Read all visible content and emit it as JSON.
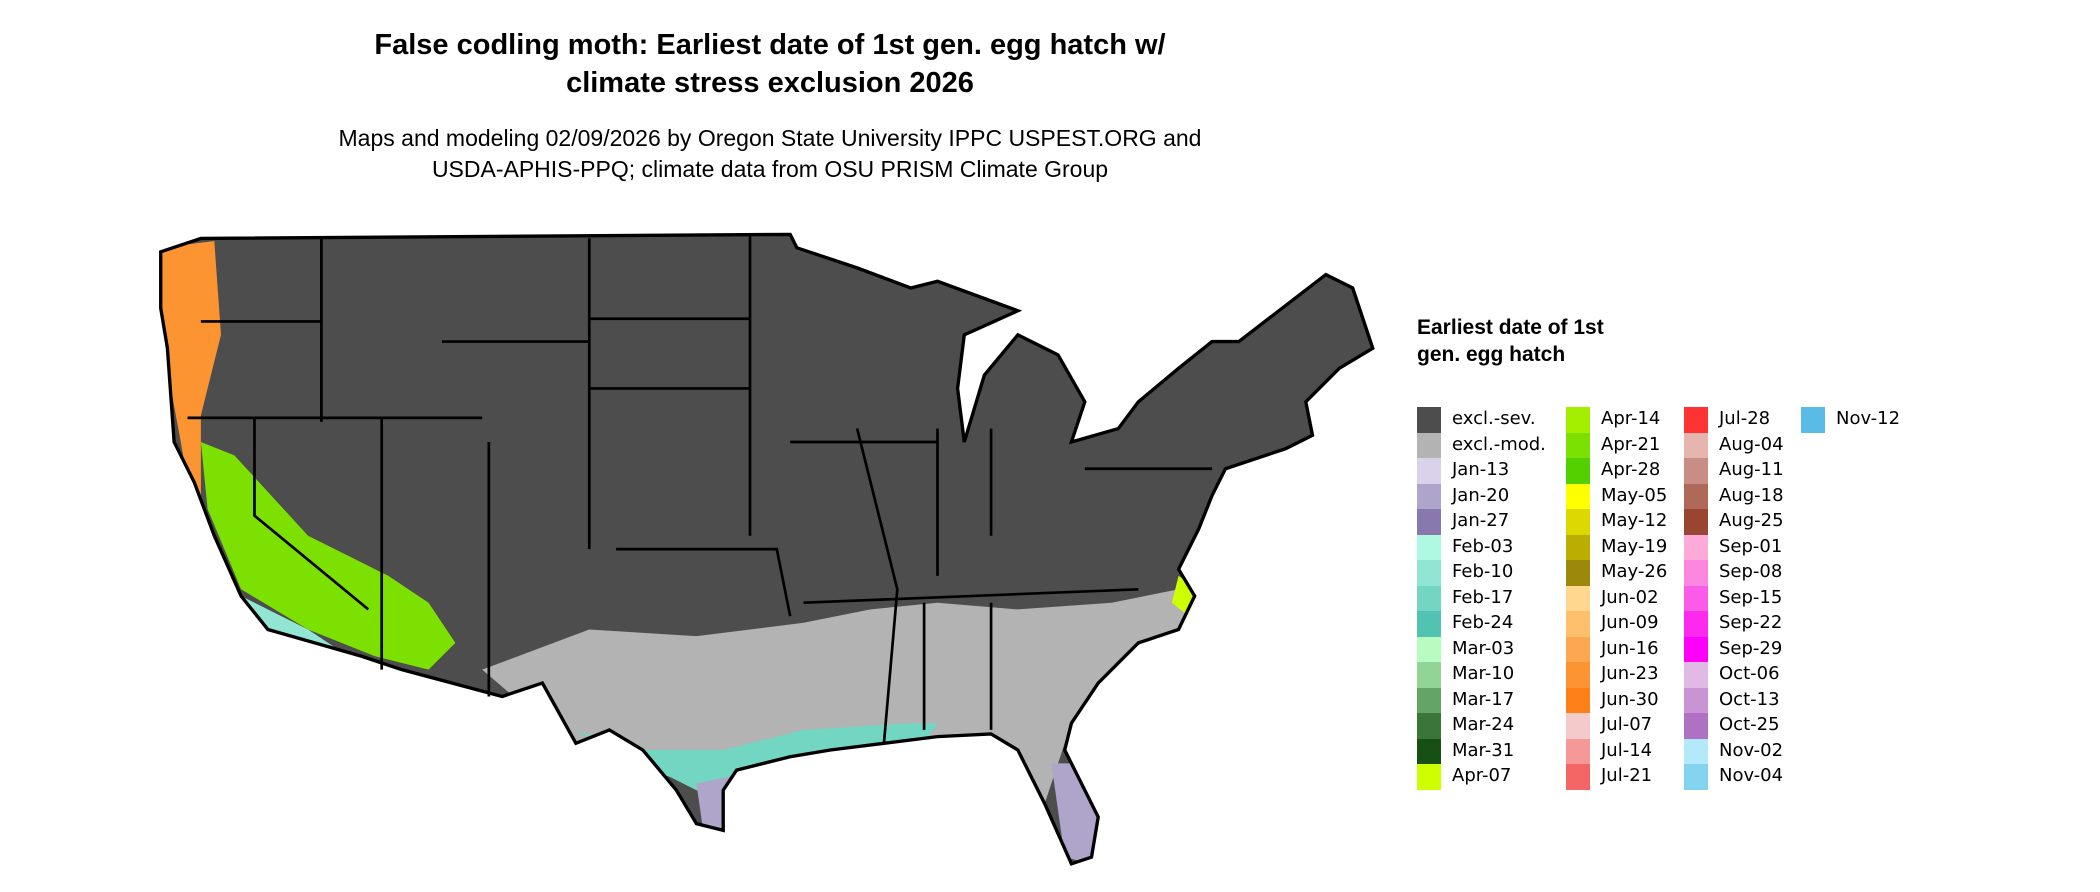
{
  "title": "False codling moth: Earliest date of 1st gen. egg hatch w/ climate stress exclusion 2026",
  "title_lines": [
    "False codling moth: Earliest date of 1st gen. egg hatch w/",
    "climate stress exclusion 2026"
  ],
  "subtitle_lines": [
    "Maps and modeling 02/09/2026 by Oregon State University IPPC USPEST.ORG and",
    "USDA-APHIS-PPQ; climate data from OSU PRISM Climate Group"
  ],
  "legend": {
    "title": "Earliest date of 1st gen. egg hatch",
    "items": [
      {
        "label": "excl.-sev.",
        "color": "#4d4d4d"
      },
      {
        "label": "excl.-mod.",
        "color": "#b3b3b3"
      },
      {
        "label": "Jan-13",
        "color": "#dad2ea"
      },
      {
        "label": "Jan-20",
        "color": "#afa4ca"
      },
      {
        "label": "Jan-27",
        "color": "#8878ae"
      },
      {
        "label": "Feb-03",
        "color": "#aff8e2"
      },
      {
        "label": "Feb-10",
        "color": "#90e6d2"
      },
      {
        "label": "Feb-17",
        "color": "#72d6c2"
      },
      {
        "label": "Feb-24",
        "color": "#52c2b2"
      },
      {
        "label": "Mar-03",
        "color": "#b8fcc0"
      },
      {
        "label": "Mar-10",
        "color": "#92d396"
      },
      {
        "label": "Mar-17",
        "color": "#64a466"
      },
      {
        "label": "Mar-24",
        "color": "#3a763a"
      },
      {
        "label": "Mar-31",
        "color": "#174f14"
      },
      {
        "label": "Apr-07",
        "color": "#ccff00"
      },
      {
        "label": "Apr-14",
        "color": "#a4ee00"
      },
      {
        "label": "Apr-21",
        "color": "#7ce000"
      },
      {
        "label": "Apr-28",
        "color": "#52d000"
      },
      {
        "label": "May-05",
        "color": "#ffff00"
      },
      {
        "label": "May-12",
        "color": "#ddd800"
      },
      {
        "label": "May-19",
        "color": "#bcae00"
      },
      {
        "label": "May-26",
        "color": "#9c880a"
      },
      {
        "label": "Jun-02",
        "color": "#ffd78e"
      },
      {
        "label": "Jun-09",
        "color": "#fec06c"
      },
      {
        "label": "Jun-16",
        "color": "#fda850"
      },
      {
        "label": "Jun-23",
        "color": "#fd9432"
      },
      {
        "label": "Jun-30",
        "color": "#fd8018"
      },
      {
        "label": "Jul-07",
        "color": "#f4caca"
      },
      {
        "label": "Jul-14",
        "color": "#f49898"
      },
      {
        "label": "Jul-21",
        "color": "#f46666"
      },
      {
        "label": "Jul-28",
        "color": "#fe3434"
      },
      {
        "label": "Aug-04",
        "color": "#e6b6ae"
      },
      {
        "label": "Aug-11",
        "color": "#c88e84"
      },
      {
        "label": "Aug-18",
        "color": "#b06858"
      },
      {
        "label": "Aug-25",
        "color": "#9a4432"
      },
      {
        "label": "Sep-01",
        "color": "#fcaad8"
      },
      {
        "label": "Sep-08",
        "color": "#fc86e0"
      },
      {
        "label": "Sep-15",
        "color": "#fc5ae8"
      },
      {
        "label": "Sep-22",
        "color": "#fc2aef"
      },
      {
        "label": "Sep-29",
        "color": "#fc00fa"
      },
      {
        "label": "Oct-06",
        "color": "#e0bae4"
      },
      {
        "label": "Oct-13",
        "color": "#c894d4"
      },
      {
        "label": "Oct-25",
        "color": "#b070c4"
      },
      {
        "label": "Nov-02",
        "color": "#b2eafc"
      },
      {
        "label": "Nov-04",
        "color": "#84d4f0"
      },
      {
        "label": "Nov-12",
        "color": "#5abce6"
      }
    ]
  }
}
